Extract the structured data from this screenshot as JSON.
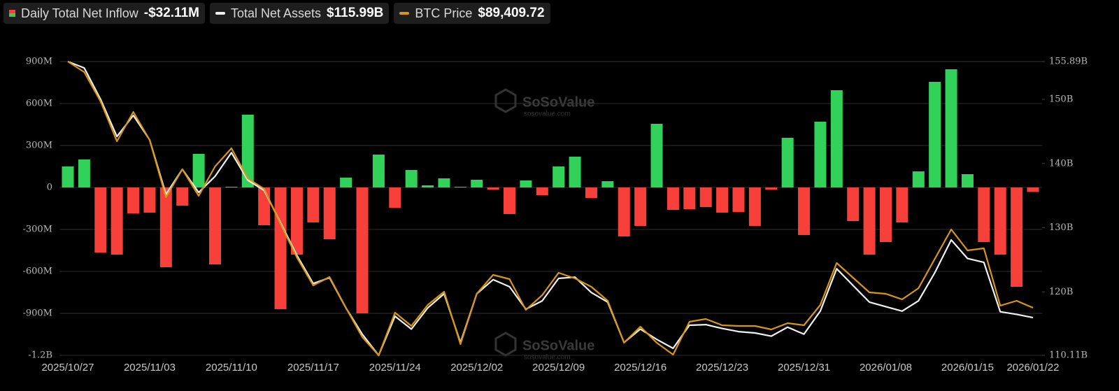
{
  "chart_data": {
    "type": "bar-line",
    "categories": [
      "2025/10/27",
      null,
      null,
      null,
      null,
      "2025/11/03",
      null,
      null,
      null,
      null,
      "2025/11/10",
      null,
      null,
      null,
      null,
      "2025/11/17",
      null,
      null,
      null,
      null,
      "2025/11/24",
      null,
      null,
      null,
      null,
      "2025/12/02",
      null,
      null,
      null,
      null,
      "2025/12/09",
      null,
      null,
      null,
      null,
      "2025/12/16",
      null,
      null,
      null,
      null,
      "2025/12/23",
      null,
      null,
      null,
      null,
      "2025/12/31",
      null,
      null,
      null,
      null,
      "2026/01/08",
      null,
      null,
      null,
      null,
      "2026/01/15",
      null,
      null,
      null,
      "2026/01/22"
    ],
    "ylim": [
      -1200,
      900
    ],
    "yticks": [
      {
        "value": -1200,
        "label": "-1.2B"
      },
      {
        "value": -900,
        "label": "-900M"
      },
      {
        "value": -600,
        "label": "-600M"
      },
      {
        "value": -300,
        "label": "-300M"
      },
      0,
      {
        "value": 300,
        "label": "300M"
      },
      {
        "value": 600,
        "label": "600M"
      },
      {
        "value": 900,
        "label": "900M"
      }
    ],
    "y2lim": [
      110.11,
      155.89
    ],
    "y2ticks": [
      {
        "value": 110.11,
        "label": "110.11B"
      },
      {
        "value": 120,
        "label": "120B"
      },
      {
        "value": 130,
        "label": "130B"
      },
      {
        "value": 140,
        "label": "140B"
      },
      {
        "value": 150,
        "label": "150B"
      },
      {
        "value": 155.89,
        "label": "155.89B"
      }
    ],
    "y3lim": [
      84000,
      117400
    ],
    "grid": true,
    "watermark": {
      "name": "SoSoValue",
      "site": "sosovalue.com"
    },
    "series": [
      {
        "name": "Daily Total Net Inflow",
        "legend_value": "-$32.11M",
        "type": "bar",
        "positive_color": "#32d15a",
        "negative_color": "#f8403a",
        "values": [
          150,
          200,
          -465,
          -480,
          -185,
          -180,
          -570,
          -130,
          240,
          -550,
          5,
          520,
          -270,
          -870,
          -480,
          -250,
          -370,
          70,
          -900,
          235,
          -145,
          125,
          15,
          65,
          5,
          55,
          -15,
          -190,
          50,
          -55,
          150,
          220,
          -75,
          45,
          -350,
          -275,
          455,
          -160,
          -155,
          -140,
          -180,
          -175,
          -275,
          -15,
          355,
          -340,
          470,
          695,
          -240,
          -480,
          -390,
          -250,
          115,
          755,
          845,
          95,
          -390,
          -480,
          -710,
          -32.11
        ]
      },
      {
        "name": "Total Net Assets",
        "legend_value": "$115.99B",
        "type": "line",
        "axis": "y2",
        "color": "#f0f0f0",
        "values": [
          155.89,
          154.9,
          150.0,
          144.2,
          147.5,
          143.7,
          135.2,
          139.1,
          135.5,
          138.0,
          141.7,
          137.4,
          135.8,
          130.8,
          125.7,
          121.3,
          122.2,
          117.5,
          113.4,
          110.1,
          116.2,
          114.2,
          117.5,
          119.7,
          112.1,
          119.7,
          121.9,
          120.8,
          117.3,
          118.6,
          122.1,
          122.3,
          119.9,
          118.4,
          112.1,
          114.2,
          112.6,
          111.2,
          114.8,
          114.9,
          114.3,
          113.8,
          113.6,
          113.1,
          114.5,
          113.4,
          117.0,
          123.6,
          121.0,
          118.4,
          117.7,
          117.0,
          118.6,
          123.0,
          128.1,
          125.2,
          124.6,
          116.9,
          116.5,
          115.99
        ]
      },
      {
        "name": "BTC Price",
        "legend_value": "$89,409.72",
        "type": "line",
        "axis": "y3",
        "color": "#d99614",
        "values": [
          117400,
          116206,
          112866,
          108333,
          111673,
          108493,
          101972,
          105153,
          102131,
          105470,
          107538,
          104119,
          102926,
          98950,
          95133,
          91952,
          92906,
          89407,
          86068,
          84000,
          88851,
          87340,
          89725,
          91236,
          85272,
          90998,
          93145,
          92668,
          89169,
          90839,
          93383,
          92747,
          91793,
          90203,
          85431,
          87260,
          85431,
          84080,
          87817,
          88135,
          87419,
          87340,
          87340,
          86942,
          87658,
          87419,
          89725,
          94497,
          92827,
          91157,
          90998,
          90362,
          91634,
          94974,
          98314,
          95928,
          96167,
          89646,
          90203,
          89409.72
        ]
      }
    ]
  }
}
